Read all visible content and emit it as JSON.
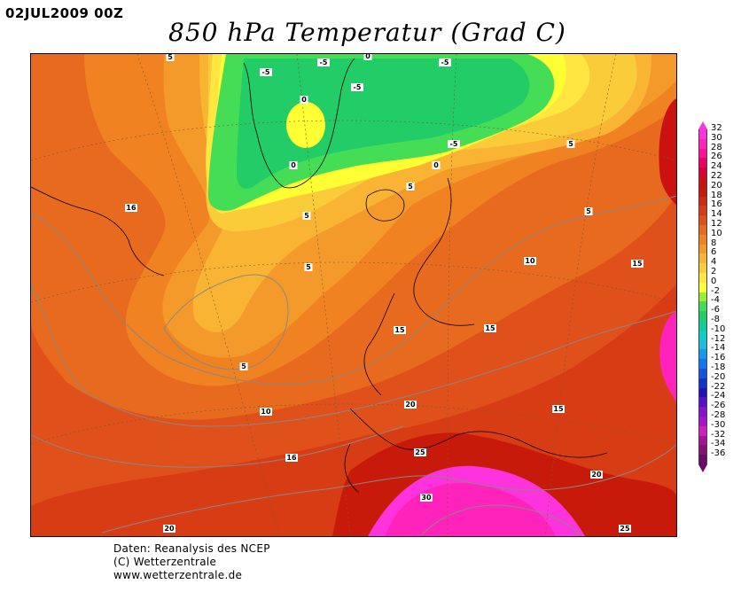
{
  "header": {
    "date_label": "02JUL2009 00Z",
    "title": "850 hPa Temperatur (Grad C)"
  },
  "map": {
    "contour_labels": [
      "-5",
      "-5",
      "-5",
      "0",
      "-5",
      "-5",
      "0",
      "0",
      "0",
      "5",
      "5",
      "5",
      "5",
      "5",
      "5",
      "5",
      "16",
      "10",
      "15",
      "15",
      "15",
      "15",
      "10",
      "16",
      "20",
      "25",
      "30",
      "20",
      "20",
      "25"
    ]
  },
  "colorbar": {
    "tick_labels": [
      "32",
      "30",
      "28",
      "26",
      "24",
      "22",
      "20",
      "18",
      "16",
      "14",
      "12",
      "10",
      "8",
      "6",
      "4",
      "2",
      "0",
      "-2",
      "-4",
      "-6",
      "-8",
      "-10",
      "-12",
      "-14",
      "-16",
      "-18",
      "-20",
      "-22",
      "-24",
      "-26",
      "-28",
      "-30",
      "-32",
      "-34",
      "-36"
    ],
    "colors": [
      "#ff33dd",
      "#ff22bb",
      "#ff1099",
      "#ee0066",
      "#dd0033",
      "#cc1111",
      "#c81a0a",
      "#d02a10",
      "#d83c14",
      "#e0501a",
      "#e86a1e",
      "#f08222",
      "#f49a2a",
      "#f8b432",
      "#fbcc3a",
      "#ffe640",
      "#ffff33",
      "#99ee33",
      "#44dd55",
      "#22cc66",
      "#11cc99",
      "#11cccc",
      "#22bbdd",
      "#1199ee",
      "#1177ee",
      "#1155dd",
      "#1133cc",
      "#2211bb",
      "#5511cc",
      "#8811cc",
      "#aa11cc",
      "#cc22bb",
      "#aa1199",
      "#881177",
      "#6a0a6a"
    ]
  },
  "footer": {
    "line1": "Daten: Reanalysis des NCEP",
    "line2": "(C) Wetterzentrale",
    "line3": "www.wetterzentrale.de"
  }
}
